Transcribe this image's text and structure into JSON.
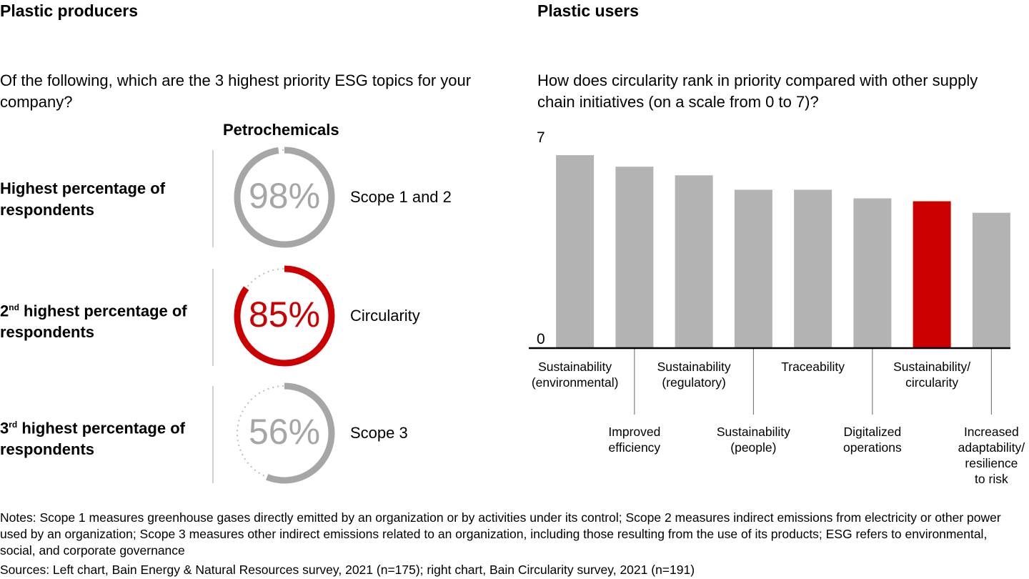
{
  "chart_data": [
    {
      "type": "gauge",
      "title": "Plastic producers",
      "subtitle": "Of the following, which are the 3 highest priority ESG topics for your company?",
      "series_header": "Petrochemicals",
      "categories": [
        {
          "text": "Highest percentage of respondents"
        },
        {
          "ordinal": "2",
          "suffix": "nd",
          "text": " highest percentage of respondents"
        },
        {
          "ordinal": "3",
          "suffix": "rd",
          "text": " highest percentage of respondents"
        }
      ],
      "labels": [
        "Scope 1 and 2",
        "Circularity",
        "Scope 3"
      ],
      "values": [
        98,
        85,
        56
      ],
      "value_labels": [
        "98%",
        "85%",
        "56%"
      ],
      "colors": [
        "#a6a6a6",
        "#cc0000",
        "#a6a6a6"
      ],
      "ylim": [
        0,
        100
      ]
    },
    {
      "type": "bar",
      "title": "Plastic users",
      "subtitle": "How does circularity rank in priority compared with other supply chain initiatives (on a scale from 0 to 7)?",
      "categories": [
        "Sustainability\n(environmental)",
        "Improved\nefficiency",
        "Sustainability\n(regulatory)",
        "Sustainability\n(people)",
        "Traceability",
        "Digitalized\noperations",
        "Sustainability/\ncircularity",
        "Increased\nadaptability/\nresilience\nto risk"
      ],
      "values": [
        6.7,
        6.3,
        6.0,
        5.5,
        5.5,
        5.2,
        5.1,
        4.7
      ],
      "colors": [
        "#b3b3b3",
        "#b3b3b3",
        "#b3b3b3",
        "#b3b3b3",
        "#b3b3b3",
        "#b3b3b3",
        "#cc0000",
        "#b3b3b3"
      ],
      "ylim": [
        0,
        7
      ],
      "yticks": [
        0,
        7
      ]
    }
  ],
  "notes": "Notes: Scope 1 measures greenhouse gases directly emitted by an organization or by activities under its control; Scope 2 measures indirect emissions from electricity or other power used by an organization; Scope 3 measures other indirect emissions related to an organization, including those resulting from the use of its products; ESG refers to environmental, social, and corporate governance",
  "sources": "Sources: Left chart, Bain Energy & Natural Resources survey, 2021 (n=175); right chart, Bain Circularity survey, 2021 (n=191)"
}
